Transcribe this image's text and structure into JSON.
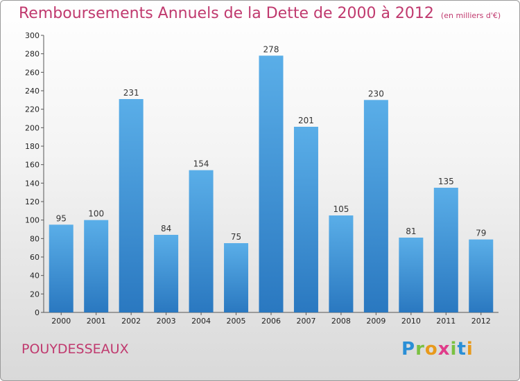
{
  "chart_data": {
    "type": "bar",
    "title": "Remboursements Annuels de la Dette de 2000 à 2012",
    "subtitle": "(en milliers d'€)",
    "categories": [
      "2000",
      "2001",
      "2002",
      "2003",
      "2004",
      "2005",
      "2006",
      "2007",
      "2008",
      "2009",
      "2010",
      "2011",
      "2012"
    ],
    "values": [
      95,
      100,
      231,
      84,
      154,
      75,
      278,
      201,
      105,
      230,
      81,
      135,
      79
    ],
    "ylim": [
      0,
      300
    ],
    "yticks": [
      0,
      20,
      40,
      60,
      80,
      100,
      120,
      140,
      160,
      180,
      200,
      220,
      240,
      260,
      280,
      300
    ],
    "grid": false,
    "legend": "none"
  },
  "commune": "POUYDESSEAUX",
  "logo": {
    "letters": [
      "P",
      "r",
      "o",
      "x",
      "i",
      "t",
      "i"
    ],
    "colors": [
      "#2a8fd6",
      "#7ac142",
      "#e89a1c",
      "#e03c8a",
      "#7ac142",
      "#2a8fd6",
      "#e89a1c"
    ]
  },
  "colors": {
    "bar_top": "#5aaee8",
    "bar_bottom": "#2a78c0",
    "title": "#c0396e"
  }
}
